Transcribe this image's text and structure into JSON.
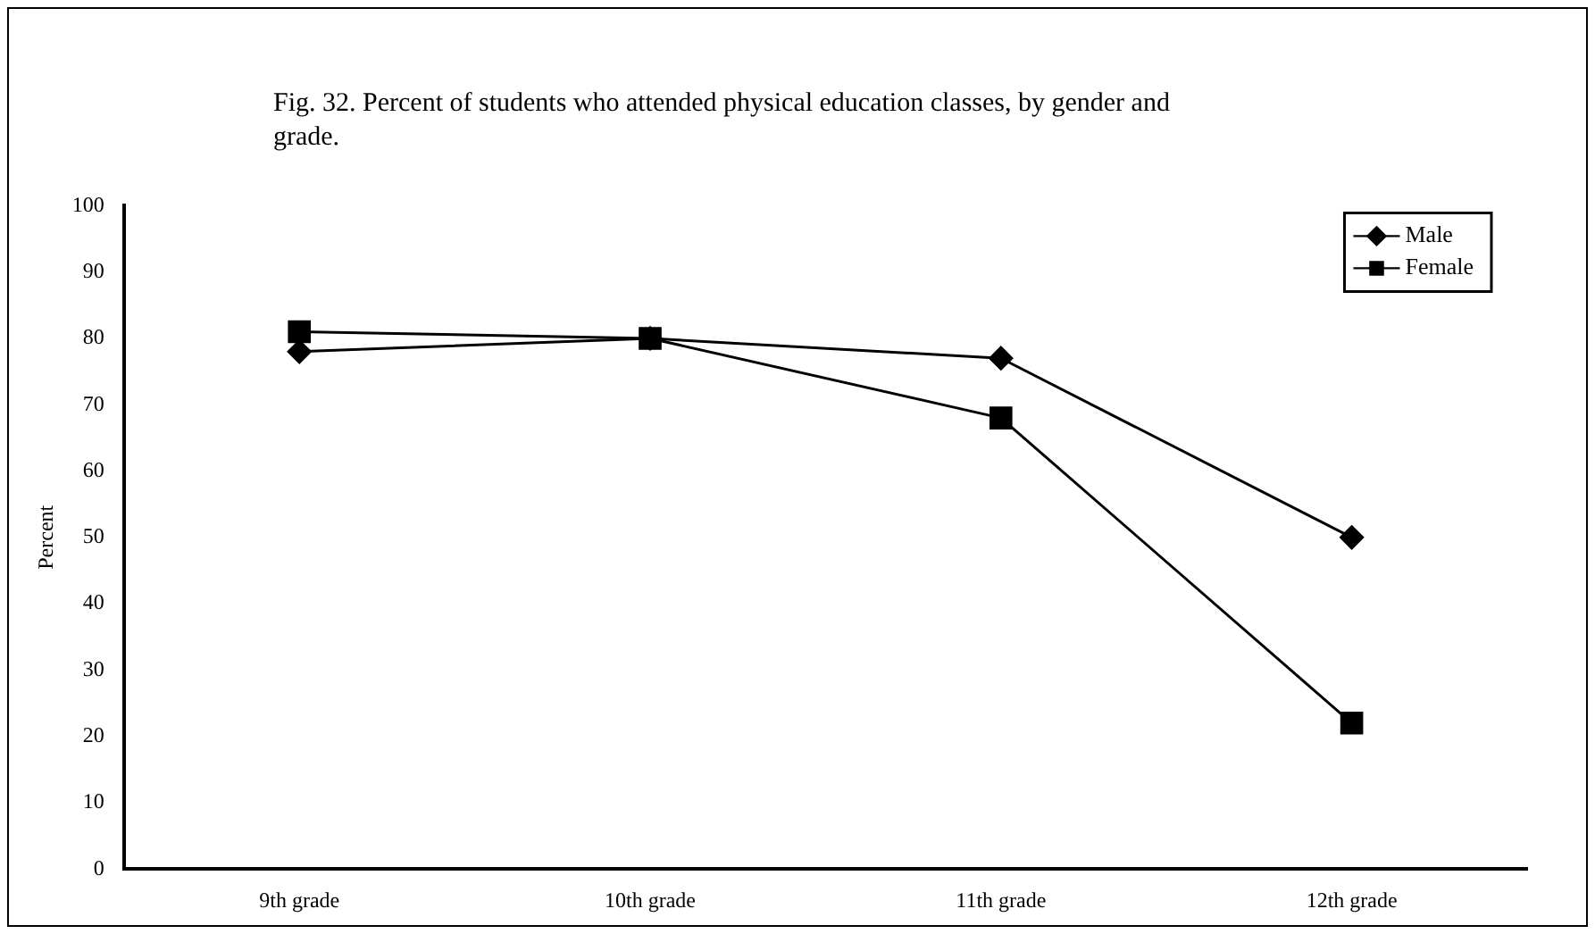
{
  "chart_data": {
    "type": "line",
    "title": "Fig. 32. Percent of students who attended physical education classes, by gender and grade.",
    "ylabel": "Percent",
    "categories": [
      "9th grade",
      "10th grade",
      "11th grade",
      "12th grade"
    ],
    "series": [
      {
        "name": "Male",
        "color": "#000000",
        "marker": "diamond",
        "values": [
          78,
          80,
          77,
          50
        ]
      },
      {
        "name": "Female",
        "color": "#000000",
        "marker": "square",
        "values": [
          81,
          80,
          68,
          22
        ]
      }
    ],
    "ylim": [
      0,
      100
    ],
    "yticks": [
      0,
      10,
      20,
      30,
      40,
      50,
      60,
      70,
      80,
      90,
      100
    ],
    "grid": false,
    "legend": "top right",
    "line_style": "solid"
  }
}
